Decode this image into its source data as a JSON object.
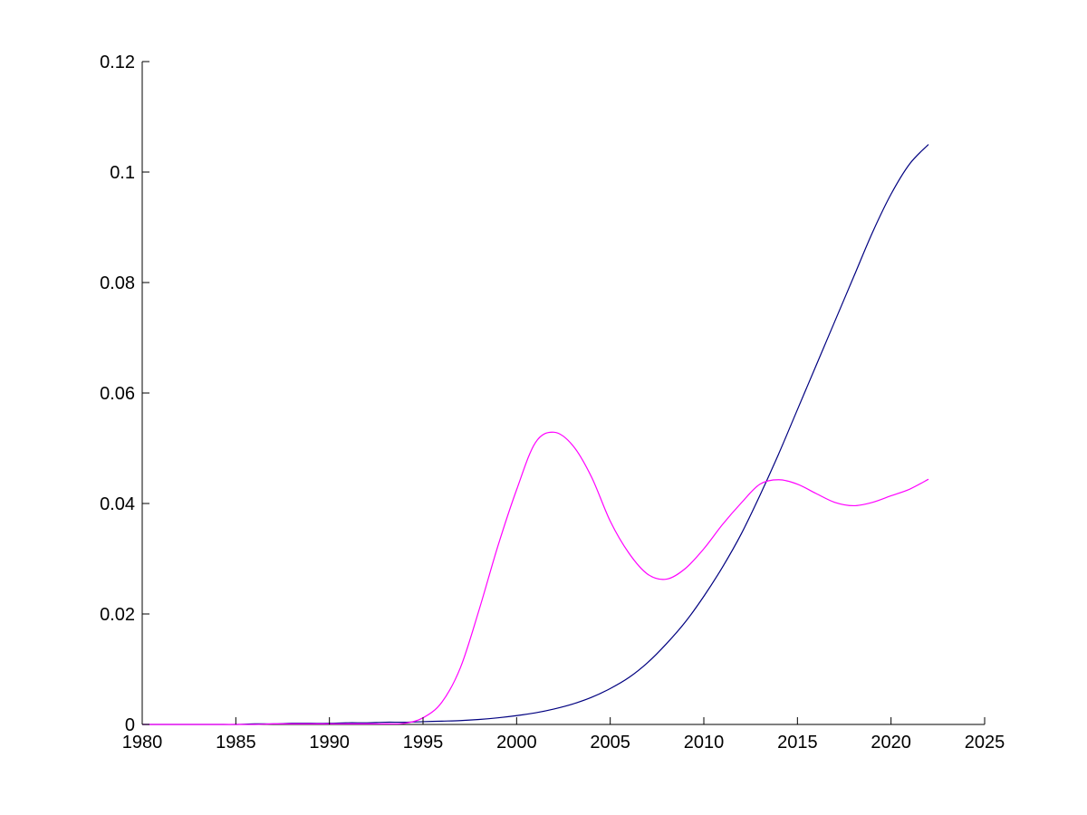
{
  "chart_data": {
    "type": "line",
    "title": "",
    "xlabel": "",
    "ylabel": "",
    "xlim": [
      1980,
      2025
    ],
    "ylim": [
      0,
      0.12
    ],
    "xticks": [
      1980,
      1985,
      1990,
      1995,
      2000,
      2005,
      2010,
      2015,
      2020,
      2025
    ],
    "xtick_labels": [
      "1980",
      "1985",
      "1990",
      "1995",
      "2000",
      "2005",
      "2010",
      "2015",
      "2020",
      "2025"
    ],
    "yticks": [
      0,
      0.02,
      0.04,
      0.06,
      0.08,
      0.1,
      0.12
    ],
    "ytick_labels": [
      "0",
      "0.02",
      "0.04",
      "0.06",
      "0.08",
      "0.1",
      "0.12"
    ],
    "grid": false,
    "legend": "none",
    "x": [
      1980,
      1981,
      1982,
      1983,
      1984,
      1985,
      1986,
      1987,
      1988,
      1989,
      1990,
      1991,
      1992,
      1993,
      1994,
      1995,
      1996,
      1997,
      1998,
      1999,
      2000,
      2001,
      2002,
      2003,
      2004,
      2005,
      2006,
      2007,
      2008,
      2009,
      2010,
      2011,
      2012,
      2013,
      2014,
      2015,
      2016,
      2017,
      2018,
      2019,
      2020,
      2021,
      2022
    ],
    "series": [
      {
        "color": "#000080",
        "values": [
          0,
          0,
          0,
          0,
          0,
          0,
          0.0001,
          0.0001,
          0.0002,
          0.0002,
          0.0002,
          0.0003,
          0.0003,
          0.0004,
          0.0004,
          0.0005,
          0.0006,
          0.0007,
          0.0009,
          0.0012,
          0.0016,
          0.0021,
          0.0028,
          0.0037,
          0.0049,
          0.0065,
          0.0085,
          0.0112,
          0.0146,
          0.0185,
          0.0232,
          0.0285,
          0.0345,
          0.0415,
          0.049,
          0.057,
          0.065,
          0.073,
          0.081,
          0.089,
          0.096,
          0.1015,
          0.105
        ]
      },
      {
        "color": "#ff00ff",
        "values": [
          0,
          0,
          0,
          0,
          0,
          0,
          0,
          0.0001,
          0.0001,
          0.0001,
          0.0001,
          0.0001,
          0.0001,
          0.0001,
          0.0002,
          0.0012,
          0.004,
          0.0103,
          0.0208,
          0.0323,
          0.0425,
          0.051,
          0.0529,
          0.0505,
          0.0448,
          0.0368,
          0.031,
          0.0272,
          0.0263,
          0.0282,
          0.0318,
          0.0362,
          0.0401,
          0.0435,
          0.0443,
          0.0435,
          0.0418,
          0.0402,
          0.0396,
          0.0402,
          0.0414,
          0.0426,
          0.0444
        ]
      }
    ]
  }
}
